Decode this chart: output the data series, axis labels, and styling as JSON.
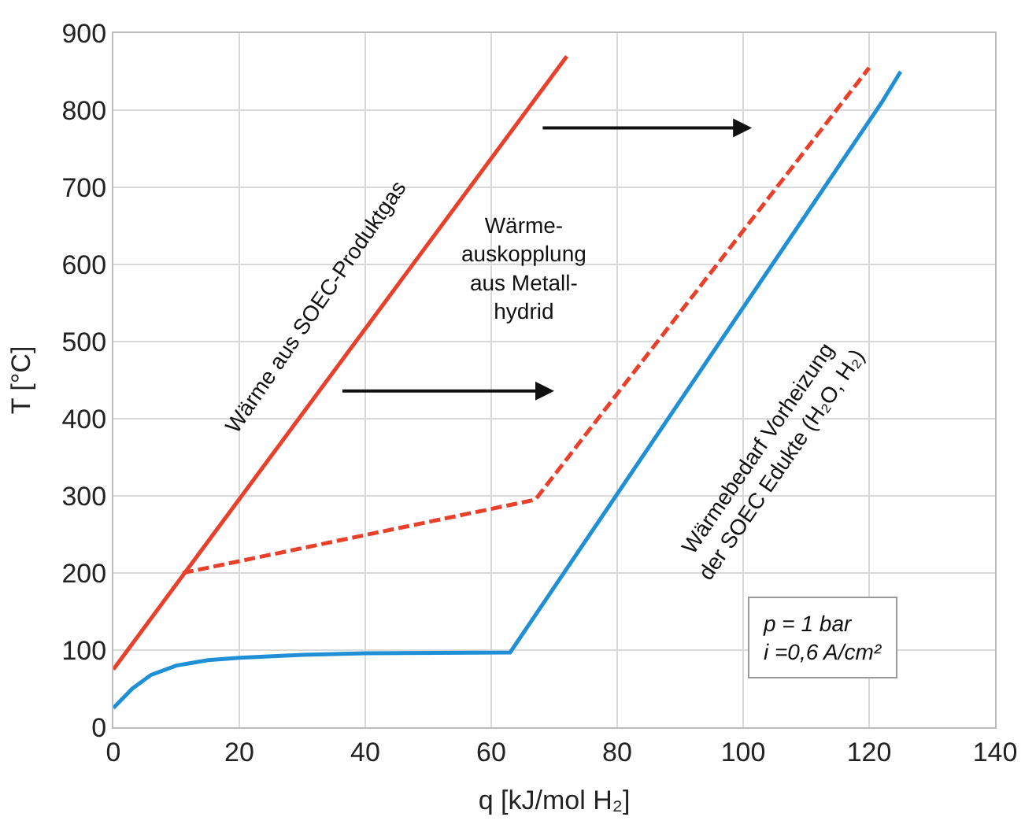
{
  "chart_data": {
    "type": "line",
    "xlabel": "q [kJ/mol H₂]",
    "ylabel": "T [°C]",
    "xlim": [
      0,
      140
    ],
    "xticks": [
      0,
      20,
      40,
      60,
      80,
      100,
      120,
      140
    ],
    "ylim": [
      0,
      900
    ],
    "yticks": [
      0,
      100,
      200,
      300,
      400,
      500,
      600,
      700,
      800,
      900
    ],
    "grid": true,
    "series": [
      {
        "color": "#e8402a",
        "line_style": "solid",
        "x": [
          0,
          72
        ],
        "values": [
          75,
          870
        ]
      },
      {
        "color": "#e8402a",
        "line_style": "dashed",
        "x": [
          11,
          67,
          120
        ],
        "values": [
          200,
          295,
          855
        ]
      },
      {
        "color": "#1f8fd6",
        "line_style": "solid",
        "x": [
          0,
          3,
          6,
          10,
          15,
          20,
          30,
          40,
          63,
          122,
          125
        ],
        "values": [
          25,
          50,
          68,
          80,
          87,
          90,
          94,
          96,
          97,
          810,
          850
        ]
      }
    ],
    "annotations": [
      "Wärme aus SOEC-Produktgas",
      "Wärme-\nauskopplung\naus Metall-\nhydrid",
      "Wärmebedarf Vorheizung\nder SOEC Edukte (H₂O, H₂)",
      "p = 1 bar\ni =0,6 A/cm²"
    ]
  }
}
